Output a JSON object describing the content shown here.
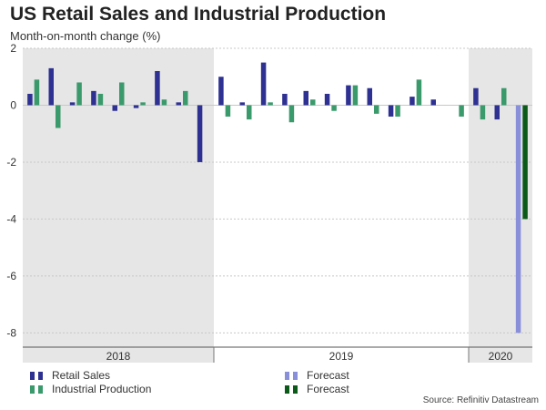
{
  "title": "US Retail Sales and Industrial Production",
  "subtitle": "Month-on-month change (%)",
  "source": "Source: Refinitiv Datastream",
  "colors": {
    "retail": "#2e3192",
    "industrial": "#3a9a6b",
    "retail_forecast": "#8a8fd9",
    "industrial_forecast": "#0b5a1a",
    "shade": "#e6e6e6",
    "grid": "#c8c8c8"
  },
  "legend": [
    {
      "label": "Retail Sales",
      "color_key": "retail"
    },
    {
      "label": "Industrial Production",
      "color_key": "industrial"
    },
    {
      "label": "Forecast",
      "color_key": "retail_forecast"
    },
    {
      "label": "Forecast",
      "color_key": "industrial_forecast"
    }
  ],
  "chart_data": {
    "type": "bar",
    "title": "US Retail Sales and Industrial Production",
    "ylabel": "Month-on-month change (%)",
    "ylim": [
      -8.5,
      2
    ],
    "yticks": [
      2,
      0,
      -2,
      -4,
      -6,
      -8
    ],
    "year_labels": [
      "2018",
      "2019",
      "2020"
    ],
    "shaded_periods": [
      "2018",
      "2020"
    ],
    "grid": true,
    "series": [
      {
        "name": "Retail Sales",
        "values": [
          0.4,
          1.3,
          0.1,
          0.5,
          -0.2,
          -0.1,
          1.2,
          0.1,
          -2.0,
          1.0,
          0.1,
          1.5,
          0.4,
          0.5,
          0.4,
          0.7,
          0.6,
          -0.4,
          0.3,
          0.2,
          null,
          0.6,
          -0.5,
          null
        ]
      },
      {
        "name": "Industrial Production",
        "values": [
          0.9,
          -0.8,
          0.8,
          0.4,
          0.8,
          0.1,
          0.2,
          0.5,
          null,
          -0.4,
          -0.5,
          0.1,
          -0.6,
          0.2,
          -0.2,
          0.7,
          -0.3,
          -0.4,
          0.9,
          null,
          -0.4,
          -0.5,
          0.6,
          null
        ]
      },
      {
        "name": "Retail Sales Forecast",
        "values": [
          null,
          null,
          null,
          null,
          null,
          null,
          null,
          null,
          null,
          null,
          null,
          null,
          null,
          null,
          null,
          null,
          null,
          null,
          null,
          null,
          null,
          null,
          null,
          -8.0
        ]
      },
      {
        "name": "Industrial Production Forecast",
        "values": [
          null,
          null,
          null,
          null,
          null,
          null,
          null,
          null,
          null,
          null,
          null,
          null,
          null,
          null,
          null,
          null,
          null,
          null,
          null,
          null,
          null,
          null,
          null,
          -4.0
        ]
      }
    ]
  }
}
